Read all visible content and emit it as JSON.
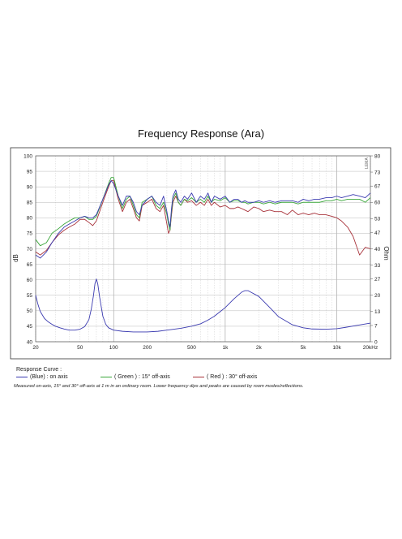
{
  "chart_data": {
    "type": "line",
    "title": "Frequency Response  (Ara)",
    "xlabel": "",
    "ylabel": "dB",
    "y2label": "Ohm",
    "xscale": "log",
    "xlim": [
      20,
      20000
    ],
    "ylim": [
      40,
      100
    ],
    "y2lim": [
      0,
      80
    ],
    "grid": true,
    "x_ticks": [
      20,
      50,
      100,
      200,
      500,
      1000,
      2000,
      5000,
      10000,
      20000
    ],
    "x_tick_labels": [
      "20",
      "50",
      "100",
      "200",
      "500",
      "1k",
      "2k",
      "5k",
      "10k",
      "20kHz"
    ],
    "y_ticks": [
      40,
      45,
      50,
      55,
      60,
      65,
      70,
      75,
      80,
      85,
      90,
      95,
      100
    ],
    "y_tick_labels": [
      "40",
      "45",
      "50",
      "55",
      "60",
      "65",
      "70",
      "75",
      "80",
      "85",
      "90",
      "95",
      "100"
    ],
    "y2_ticks": [
      0,
      7,
      13,
      20,
      27,
      33,
      40,
      47,
      53,
      60,
      67,
      73,
      80
    ],
    "y2_tick_labels": [
      "0",
      "7",
      "13",
      "20",
      "27",
      "33",
      "40",
      "47",
      "53",
      "60",
      "67",
      "73",
      "80"
    ],
    "series": [
      {
        "name": "(Blue)  : on axis",
        "color": "#3a3ab0",
        "axis": "left",
        "x": [
          20,
          22,
          25,
          28,
          32,
          36,
          40,
          45,
          50,
          55,
          60,
          65,
          70,
          80,
          90,
          95,
          100,
          110,
          120,
          130,
          140,
          150,
          160,
          170,
          180,
          200,
          220,
          240,
          260,
          280,
          300,
          310,
          320,
          330,
          340,
          360,
          380,
          400,
          430,
          460,
          500,
          550,
          600,
          650,
          700,
          750,
          800,
          900,
          1000,
          1100,
          1200,
          1300,
          1400,
          1500,
          1600,
          1800,
          2000,
          2200,
          2500,
          2800,
          3200,
          3600,
          4000,
          4500,
          5000,
          5600,
          6300,
          7000,
          8000,
          9000,
          10000,
          11000,
          12500,
          14000,
          16000,
          18000,
          20000
        ],
        "y": [
          68,
          67,
          69,
          72,
          75,
          77,
          78,
          79,
          80,
          80.5,
          80,
          80,
          81,
          86,
          90.5,
          92,
          91,
          87,
          84,
          87,
          87,
          85,
          82,
          81,
          84,
          86,
          87,
          85,
          84,
          87,
          82,
          79,
          77,
          83,
          87,
          89,
          86,
          85,
          87,
          86,
          88,
          85,
          87,
          86,
          88,
          85,
          87,
          86,
          87,
          85,
          86,
          86,
          85,
          85.5,
          85,
          85,
          85.5,
          85,
          85.5,
          85,
          85.5,
          85.5,
          85.5,
          85,
          86,
          85.5,
          86,
          86,
          86.5,
          86.5,
          87,
          86.5,
          87,
          87.5,
          87,
          86.5,
          88
        ]
      },
      {
        "name": "( Green ) : 15° off-axis",
        "color": "#3aa63a",
        "axis": "left",
        "x": [
          20,
          22,
          25,
          28,
          32,
          36,
          40,
          45,
          50,
          55,
          60,
          65,
          70,
          80,
          90,
          95,
          100,
          110,
          120,
          130,
          140,
          150,
          160,
          170,
          180,
          200,
          220,
          240,
          260,
          280,
          300,
          310,
          320,
          330,
          340,
          360,
          380,
          400,
          430,
          460,
          500,
          550,
          600,
          650,
          700,
          750,
          800,
          900,
          1000,
          1100,
          1200,
          1300,
          1400,
          1500,
          1600,
          1800,
          2000,
          2200,
          2500,
          2800,
          3200,
          3600,
          4000,
          4500,
          5000,
          5600,
          6300,
          7000,
          8000,
          9000,
          10000,
          11000,
          12500,
          14000,
          16000,
          18000,
          20000
        ],
        "y": [
          73,
          71,
          72,
          75,
          76.5,
          78,
          79,
          80,
          80,
          80.5,
          79.5,
          79.5,
          80.5,
          86,
          91,
          93,
          93,
          87,
          83,
          86,
          87,
          84,
          81,
          80,
          85,
          86,
          87,
          84,
          83,
          85,
          81,
          78,
          76,
          82,
          86,
          88,
          85,
          84,
          86,
          85.5,
          86.5,
          85,
          86,
          85,
          87,
          85,
          86,
          85.5,
          86.5,
          85,
          85.5,
          85.5,
          85,
          85,
          84.5,
          85,
          85,
          84.5,
          85,
          84.5,
          85,
          85,
          85,
          84.5,
          85,
          85,
          85,
          85,
          85.5,
          85.5,
          86,
          85.5,
          86,
          86,
          86,
          85,
          86.5
        ]
      },
      {
        "name": "( Red ) : 30° off-axis",
        "color": "#a8323a",
        "axis": "left",
        "x": [
          20,
          22,
          25,
          28,
          32,
          36,
          40,
          45,
          50,
          55,
          60,
          65,
          70,
          80,
          90,
          95,
          100,
          110,
          120,
          130,
          140,
          150,
          160,
          170,
          180,
          200,
          220,
          240,
          260,
          280,
          300,
          310,
          320,
          330,
          340,
          360,
          380,
          400,
          430,
          460,
          500,
          550,
          600,
          650,
          700,
          750,
          800,
          900,
          1000,
          1100,
          1200,
          1300,
          1400,
          1500,
          1600,
          1800,
          2000,
          2200,
          2500,
          2800,
          3200,
          3600,
          4000,
          4500,
          5000,
          5600,
          6300,
          7000,
          8000,
          9000,
          10000,
          11000,
          12500,
          14000,
          16000,
          18000,
          20000
        ],
        "y": [
          69,
          68,
          69.5,
          72,
          74.5,
          76,
          77,
          78,
          79.5,
          79.5,
          78.5,
          77.5,
          79,
          85,
          90,
          92,
          92,
          86,
          82,
          85,
          86,
          83,
          80,
          79,
          84,
          85,
          86,
          83,
          82,
          84,
          78,
          75,
          76,
          81,
          85,
          87,
          85,
          84,
          86,
          85,
          85.5,
          84,
          85,
          84,
          86,
          84,
          85,
          83.5,
          84,
          83,
          83,
          83.5,
          83,
          82.5,
          82,
          83.5,
          83,
          82,
          82.5,
          82,
          82,
          81,
          82.5,
          81,
          81.5,
          81,
          81.5,
          81,
          81,
          80.5,
          80,
          79,
          77,
          74,
          68,
          70.5,
          70
        ]
      },
      {
        "name": "Impedance",
        "color": "#3a3ab0",
        "axis": "right",
        "x": [
          20,
          21,
          22,
          24,
          26,
          28,
          30,
          33,
          36,
          40,
          45,
          50,
          55,
          60,
          63,
          66,
          68,
          70,
          72,
          75,
          80,
          85,
          90,
          100,
          120,
          150,
          200,
          250,
          300,
          400,
          500,
          600,
          700,
          800,
          1000,
          1200,
          1400,
          1500,
          1600,
          1700,
          2000,
          2500,
          3000,
          4000,
          5000,
          6000,
          8000,
          10000,
          12000,
          15000,
          20000
        ],
        "y": [
          20,
          16,
          13,
          10,
          8.5,
          7.5,
          6.7,
          6,
          5.5,
          5,
          5,
          5.4,
          6.5,
          9.5,
          14,
          20,
          25,
          27,
          25,
          19,
          11,
          7.5,
          6,
          5,
          4.5,
          4.2,
          4.2,
          4.5,
          5,
          5.8,
          6.7,
          7.7,
          9.3,
          11,
          14.7,
          18.5,
          21.3,
          22,
          22,
          21.3,
          19.5,
          14.8,
          10.8,
          7.3,
          6,
          5.5,
          5.4,
          5.6,
          6.2,
          7,
          8
        ]
      }
    ]
  },
  "legend": {
    "header": "Response Curve :",
    "items": [
      "(Blue)  : on axis",
      "( Green ) : 15° off-axis",
      "( Red ) : 30° off-axis"
    ]
  },
  "footnote": "Measured on-axis, 15° and 30° off-axis at 1 m in an ordinary room. Lower frequency dips and peaks are caused by room modes/reflections.",
  "watermark": "LEMA"
}
